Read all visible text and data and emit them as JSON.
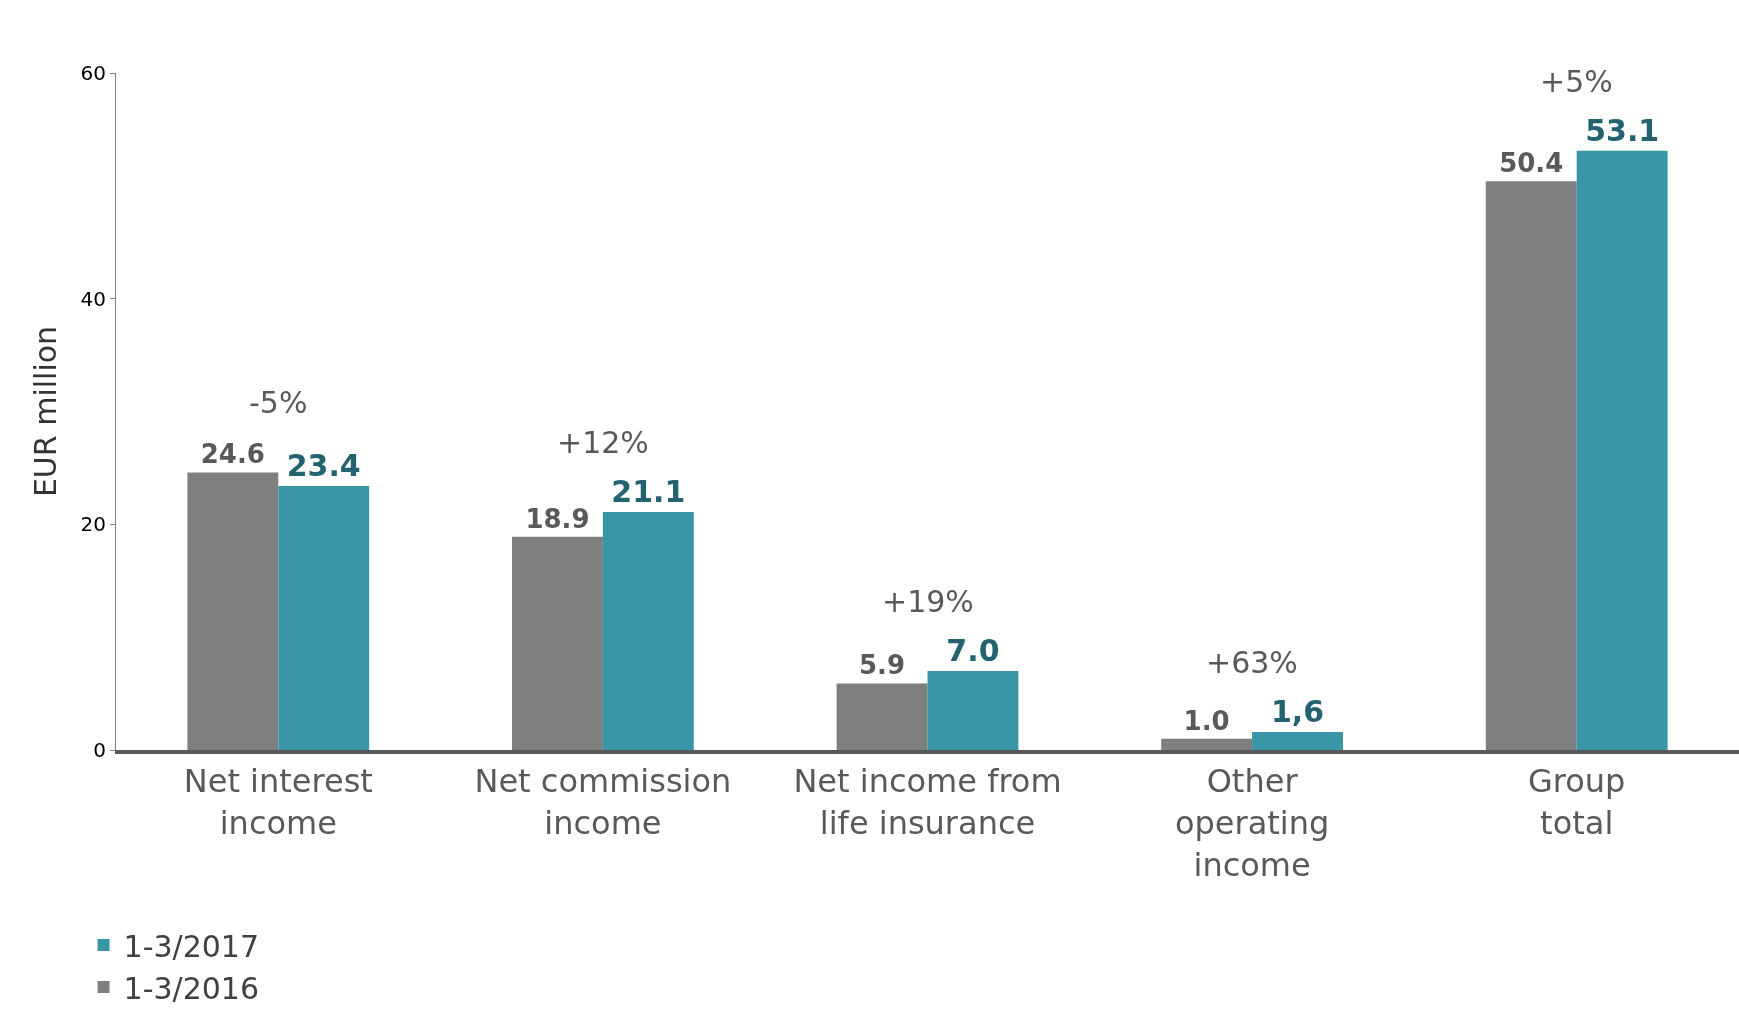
{
  "chart_data": {
    "type": "bar",
    "ylabel": "EUR million",
    "categories": [
      "Net interest\nincome",
      "Net commission\nincome",
      "Net income from\nlife insurance",
      "Other\noperating\nincome",
      "Group\ntotal"
    ],
    "series": [
      {
        "name": "1-3/2016",
        "color": "#7f7f7f",
        "values": [
          24.6,
          18.9,
          5.9,
          1.0,
          50.4
        ],
        "value_labels": [
          "24.6",
          "18.9",
          "5.9",
          "1.0",
          "50.4"
        ]
      },
      {
        "name": "1-3/2017",
        "color": "#3896a6",
        "values": [
          23.4,
          21.1,
          7.0,
          1.6,
          53.1
        ],
        "value_labels": [
          "23.4",
          "21.1",
          "7.0",
          "1,6",
          "53.1"
        ]
      }
    ],
    "annotations": [
      "-5%",
      "+12%",
      "+19%",
      "+63%",
      "+5%"
    ],
    "ylim": [
      0,
      60
    ],
    "yticks": [
      0,
      20,
      40,
      60
    ],
    "legend": "bottom left"
  }
}
